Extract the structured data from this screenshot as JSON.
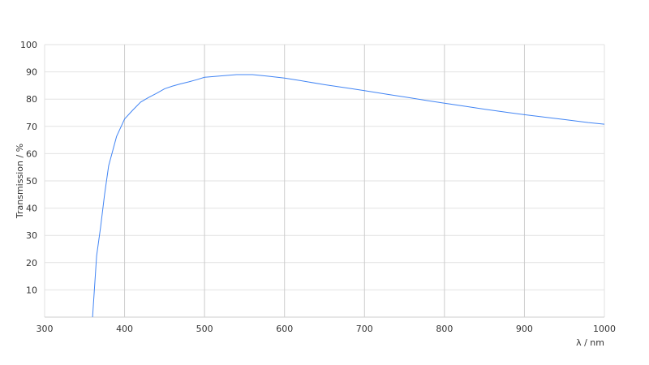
{
  "chart_data": {
    "type": "line",
    "title": "",
    "xlabel": "λ / nm",
    "ylabel": "Transmission / %",
    "xlim": [
      300,
      1000
    ],
    "ylim": [
      0,
      100
    ],
    "x_ticks": [
      300,
      400,
      500,
      600,
      700,
      800,
      900,
      1000
    ],
    "y_ticks": [
      10,
      20,
      30,
      40,
      50,
      60,
      70,
      80,
      90,
      100
    ],
    "grid": true,
    "line_color": "#4285f4",
    "series": [
      {
        "x": [
          360,
          365,
          370,
          375,
          380,
          390,
          400,
          410,
          420,
          430,
          440,
          450,
          460,
          470,
          480,
          490,
          500,
          520,
          540,
          560,
          580,
          600,
          620,
          650,
          680,
          700,
          730,
          750,
          780,
          800,
          830,
          850,
          880,
          900,
          930,
          950,
          980,
          1000
        ],
        "y": [
          0,
          22.5,
          33,
          45,
          55.5,
          66.3,
          72.7,
          75.9,
          78.9,
          80.6,
          82.1,
          83.8,
          84.8,
          85.6,
          86.3,
          87.1,
          88.0,
          88.5,
          89.0,
          89.0,
          88.4,
          87.7,
          86.8,
          85.3,
          84.0,
          83.1,
          81.7,
          80.8,
          79.4,
          78.5,
          77.2,
          76.3,
          75.1,
          74.3,
          73.2,
          72.5,
          71.4,
          70.8
        ]
      }
    ]
  }
}
